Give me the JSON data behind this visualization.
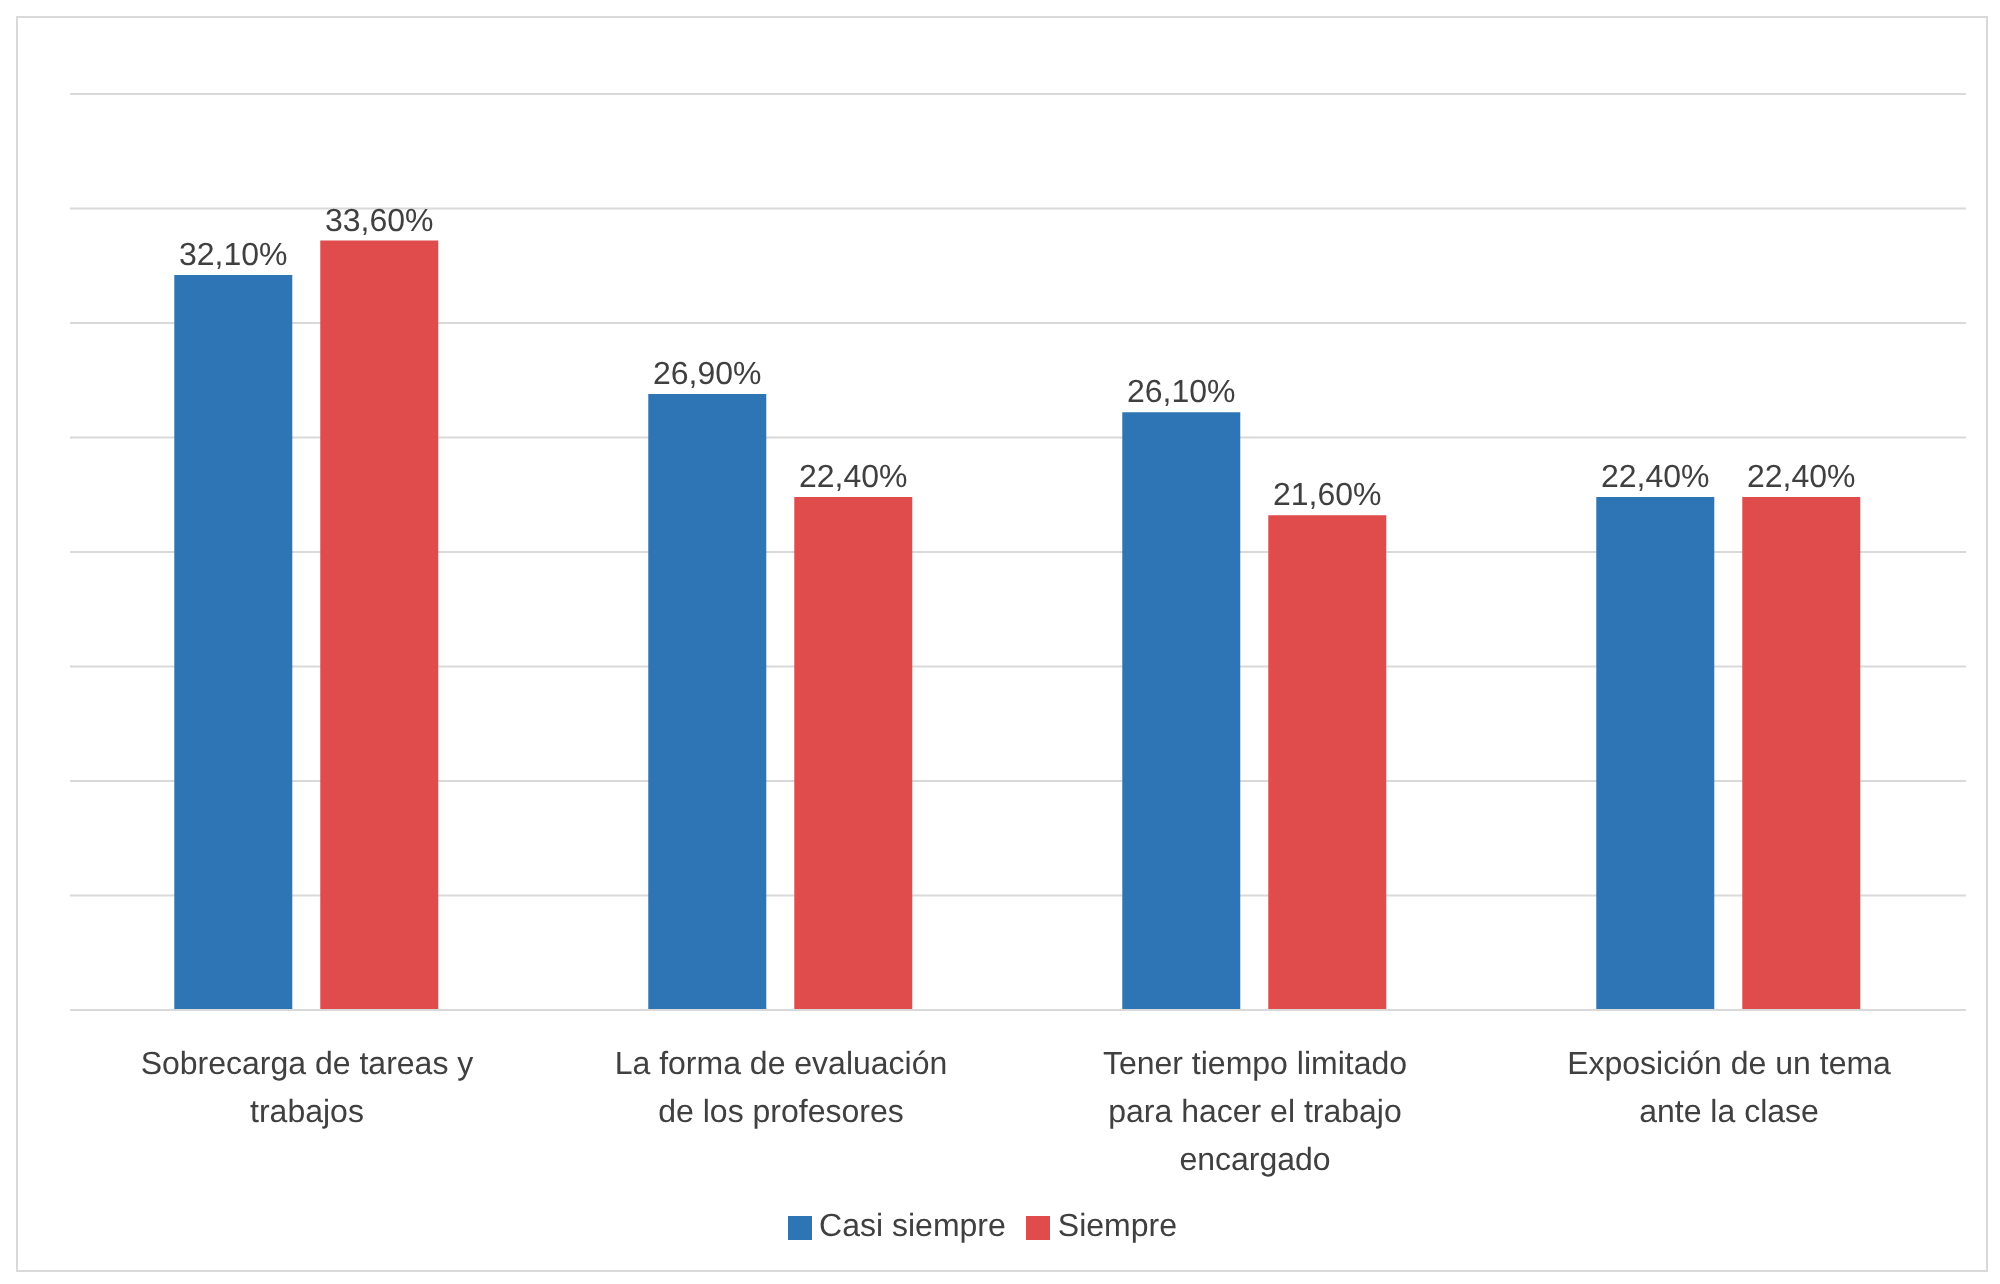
{
  "chart_data": {
    "type": "bar",
    "categories": [
      "Sobrecarga de tareas y trabajos",
      "La forma de evaluación de los profesores",
      "Tener tiempo limitado para hacer el trabajo encargado",
      "Exposición de un tema ante la clase"
    ],
    "series": [
      {
        "name": "Casi siempre",
        "color": "#2e75b6",
        "values": [
          32.1,
          26.9,
          26.1,
          22.4
        ],
        "value_labels": [
          "32,10%",
          "26,90%",
          "26,10%",
          "22,40%"
        ]
      },
      {
        "name": "Siempre",
        "color": "#e04b4b",
        "values": [
          33.6,
          22.4,
          21.6,
          22.4
        ],
        "value_labels": [
          "33,60%",
          "22,40%",
          "21,60%",
          "22,40%"
        ]
      }
    ],
    "ylim": [
      0,
      40
    ],
    "yticks": [
      {
        "value": 0,
        "label": null
      },
      {
        "value": 5,
        "label": null
      },
      {
        "value": 10,
        "label": null
      },
      {
        "value": 15,
        "label": null
      },
      {
        "value": 20,
        "label": null
      },
      {
        "value": 25,
        "label": null
      },
      {
        "value": 30,
        "label": null
      },
      {
        "value": 35,
        "label": null
      },
      {
        "value": 40,
        "label": null
      }
    ],
    "tick_labels": "x",
    "grid": "y",
    "legend": "bottom"
  }
}
